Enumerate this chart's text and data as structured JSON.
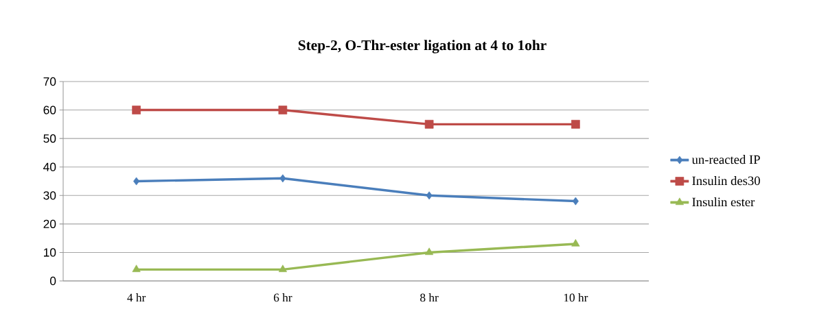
{
  "chart_data": {
    "type": "line",
    "title": "Step-2, O-Thr-ester   ligation at 4 to 1ohr",
    "categories": [
      "4 hr",
      "6 hr",
      "8 hr",
      "10 hr"
    ],
    "series": [
      {
        "name": "un-reacted IP",
        "color": "#4a7ebb",
        "marker": "diamond",
        "values": [
          35,
          36,
          30,
          28
        ]
      },
      {
        "name": "Insulin des30",
        "color": "#be4b48",
        "marker": "square",
        "values": [
          60,
          60,
          55,
          55
        ]
      },
      {
        "name": "Insulin ester",
        "color": "#98b954",
        "marker": "triangle",
        "values": [
          4,
          4,
          10,
          13
        ]
      }
    ],
    "ylim": [
      0,
      70
    ],
    "yticks": [
      0,
      10,
      20,
      30,
      40,
      50,
      60,
      70
    ],
    "grid": "y",
    "legend": "right"
  }
}
